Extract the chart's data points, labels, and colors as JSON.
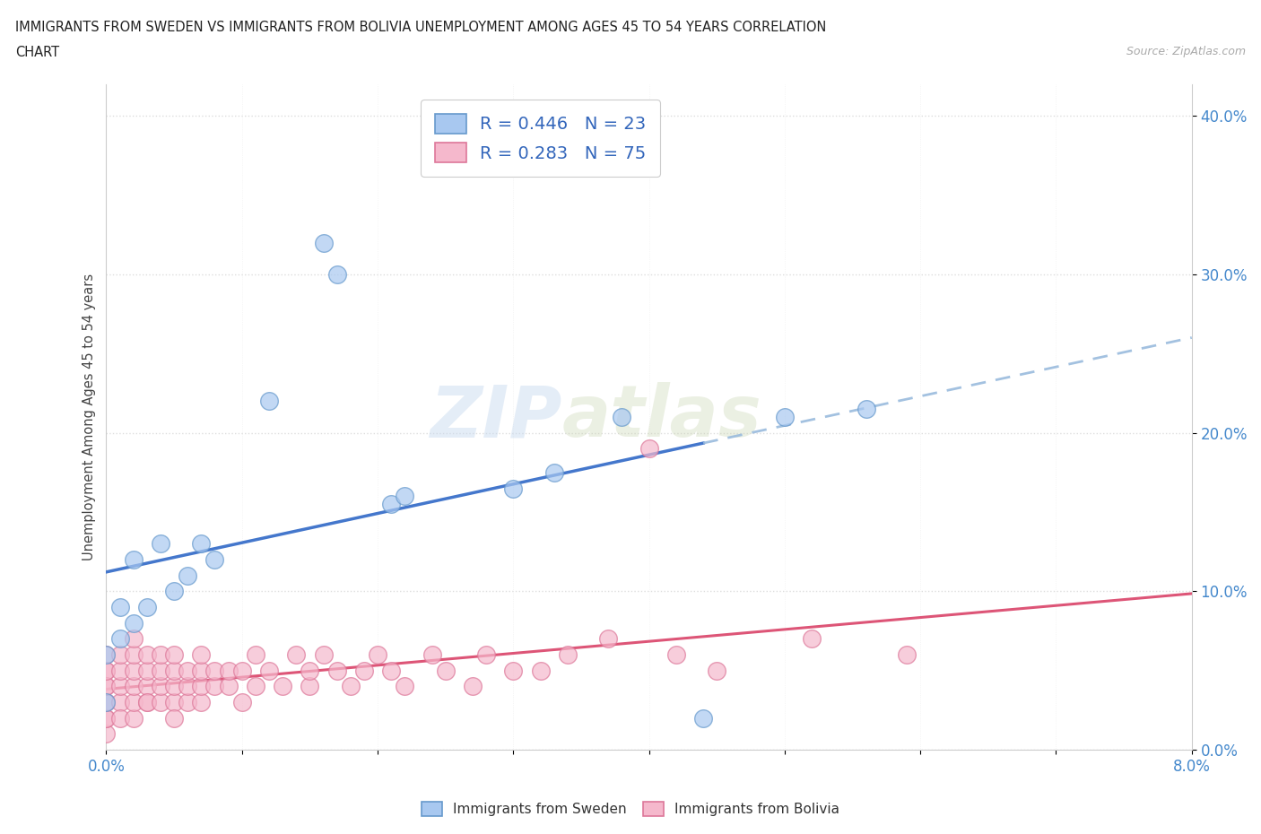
{
  "title_line1": "IMMIGRANTS FROM SWEDEN VS IMMIGRANTS FROM BOLIVIA UNEMPLOYMENT AMONG AGES 45 TO 54 YEARS CORRELATION",
  "title_line2": "CHART",
  "source_text": "Source: ZipAtlas.com",
  "ylabel": "Unemployment Among Ages 45 to 54 years",
  "xlim": [
    0.0,
    0.08
  ],
  "ylim": [
    0.0,
    0.42
  ],
  "xticks": [
    0.0,
    0.01,
    0.02,
    0.03,
    0.04,
    0.05,
    0.06,
    0.07,
    0.08
  ],
  "xtick_labels_show": [
    "0.0%",
    "",
    "",
    "",
    "",
    "",
    "",
    "",
    "8.0%"
  ],
  "yticks": [
    0.0,
    0.1,
    0.2,
    0.3,
    0.4
  ],
  "ytick_labels": [
    "0.0%",
    "10.0%",
    "20.0%",
    "30.0%",
    "40.0%"
  ],
  "sweden_color": "#a8c8f0",
  "bolivia_color": "#f5b8cc",
  "sweden_edge_color": "#6699cc",
  "bolivia_edge_color": "#dd7799",
  "trendline_sweden_solid_color": "#4477cc",
  "trendline_bolivia_color": "#dd5577",
  "trendline_sweden_dashed_color": "#99bbdd",
  "R_sweden": 0.446,
  "N_sweden": 23,
  "R_bolivia": 0.283,
  "N_bolivia": 75,
  "legend_label_sweden": "Immigrants from Sweden",
  "legend_label_bolivia": "Immigrants from Bolivia",
  "watermark_ZIP": "ZIP",
  "watermark_atlas": "atlas",
  "sweden_x": [
    0.0,
    0.0,
    0.001,
    0.001,
    0.002,
    0.002,
    0.003,
    0.004,
    0.005,
    0.006,
    0.007,
    0.008,
    0.012,
    0.016,
    0.017,
    0.021,
    0.022,
    0.03,
    0.033,
    0.038,
    0.044,
    0.05,
    0.056
  ],
  "sweden_y": [
    0.03,
    0.06,
    0.07,
    0.09,
    0.08,
    0.12,
    0.09,
    0.13,
    0.1,
    0.11,
    0.13,
    0.12,
    0.22,
    0.32,
    0.3,
    0.155,
    0.16,
    0.165,
    0.175,
    0.21,
    0.02,
    0.21,
    0.215
  ],
  "bolivia_x": [
    0.0,
    0.0,
    0.0,
    0.0,
    0.0,
    0.0,
    0.0,
    0.0,
    0.0,
    0.0,
    0.001,
    0.001,
    0.001,
    0.001,
    0.001,
    0.002,
    0.002,
    0.002,
    0.002,
    0.002,
    0.002,
    0.003,
    0.003,
    0.003,
    0.003,
    0.003,
    0.004,
    0.004,
    0.004,
    0.004,
    0.005,
    0.005,
    0.005,
    0.005,
    0.005,
    0.006,
    0.006,
    0.006,
    0.007,
    0.007,
    0.007,
    0.007,
    0.008,
    0.008,
    0.009,
    0.009,
    0.01,
    0.01,
    0.011,
    0.011,
    0.012,
    0.013,
    0.014,
    0.015,
    0.015,
    0.016,
    0.017,
    0.018,
    0.019,
    0.02,
    0.021,
    0.022,
    0.024,
    0.025,
    0.027,
    0.028,
    0.03,
    0.032,
    0.034,
    0.037,
    0.04,
    0.042,
    0.045,
    0.052,
    0.059
  ],
  "bolivia_y": [
    0.01,
    0.02,
    0.03,
    0.04,
    0.05,
    0.06,
    0.02,
    0.03,
    0.04,
    0.05,
    0.03,
    0.04,
    0.05,
    0.06,
    0.02,
    0.02,
    0.03,
    0.04,
    0.05,
    0.06,
    0.07,
    0.03,
    0.04,
    0.05,
    0.06,
    0.03,
    0.03,
    0.04,
    0.05,
    0.06,
    0.03,
    0.04,
    0.05,
    0.06,
    0.02,
    0.03,
    0.04,
    0.05,
    0.03,
    0.04,
    0.05,
    0.06,
    0.04,
    0.05,
    0.04,
    0.05,
    0.03,
    0.05,
    0.04,
    0.06,
    0.05,
    0.04,
    0.06,
    0.04,
    0.05,
    0.06,
    0.05,
    0.04,
    0.05,
    0.06,
    0.05,
    0.04,
    0.06,
    0.05,
    0.04,
    0.06,
    0.05,
    0.05,
    0.06,
    0.07,
    0.19,
    0.06,
    0.05,
    0.07,
    0.06
  ],
  "background_color": "#ffffff",
  "grid_color": "#dddddd",
  "title_color": "#222222",
  "axis_label_color": "#444444",
  "tick_label_color": "#4488cc",
  "legend_text_color": "#3366bb"
}
